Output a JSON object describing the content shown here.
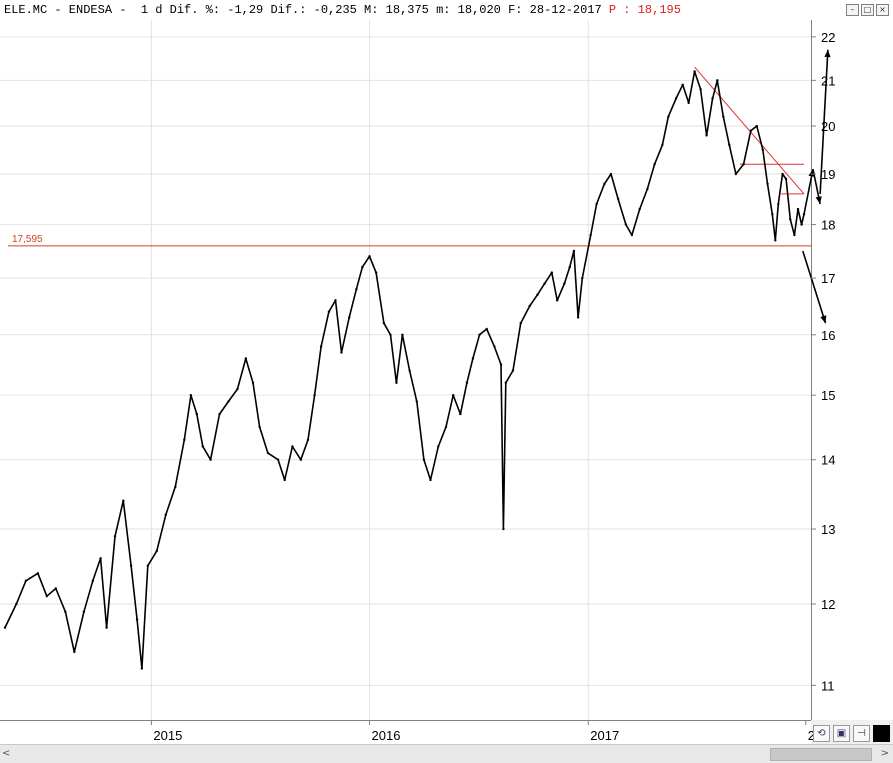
{
  "title_bar": {
    "main": "ELE.MC - ENDESA -  1 d Dif. %: -1,29 Dif.: -0,235 M: 18,375 m: 18,020 F: 28-12-2017 ",
    "last": "P : 18,195"
  },
  "window_controls": {
    "minimize": "–",
    "maximize": "□",
    "close": "×"
  },
  "scrollbar": {
    "left_arrow": "<",
    "right_arrow": ">"
  },
  "toolbar_icons": [
    "refresh-icon",
    "save-icon",
    "pin-icon",
    "color-box-icon"
  ],
  "colors": {
    "price": "#000000",
    "support": "#d04020",
    "trendline": "#e03030",
    "arrows": "#000000"
  },
  "chart_data": {
    "type": "line",
    "title": "ELE.MC - ENDESA",
    "xlabel": "",
    "ylabel": "",
    "y_scale": "log",
    "ylim": [
      10.6,
      22.4
    ],
    "xlim": [
      "2014-05-01",
      "2017-12-28"
    ],
    "yticks": [
      11,
      12,
      13,
      14,
      15,
      16,
      17,
      18,
      19,
      20,
      21,
      22
    ],
    "xticks": [
      "2015",
      "2016",
      "2017",
      "2"
    ],
    "grid": true,
    "series": [
      {
        "values": [
          [
            "2014-05-01",
            11.7
          ],
          [
            "2014-05-20",
            12.0
          ],
          [
            "2014-06-05",
            12.3
          ],
          [
            "2014-06-25",
            12.4
          ],
          [
            "2014-07-10",
            12.1
          ],
          [
            "2014-07-25",
            12.2
          ],
          [
            "2014-08-10",
            11.9
          ],
          [
            "2014-08-25",
            11.4
          ],
          [
            "2014-09-10",
            11.9
          ],
          [
            "2014-09-25",
            12.3
          ],
          [
            "2014-10-08",
            12.6
          ],
          [
            "2014-10-18",
            11.7
          ],
          [
            "2014-11-01",
            12.9
          ],
          [
            "2014-11-15",
            13.4
          ],
          [
            "2014-11-28",
            12.5
          ],
          [
            "2014-12-08",
            11.8
          ],
          [
            "2014-12-16",
            11.2
          ],
          [
            "2014-12-26",
            12.5
          ],
          [
            "2015-01-10",
            12.7
          ],
          [
            "2015-01-25",
            13.2
          ],
          [
            "2015-02-10",
            13.6
          ],
          [
            "2015-02-25",
            14.3
          ],
          [
            "2015-03-08",
            15.0
          ],
          [
            "2015-03-18",
            14.7
          ],
          [
            "2015-03-28",
            14.2
          ],
          [
            "2015-04-10",
            14.0
          ],
          [
            "2015-04-25",
            14.7
          ],
          [
            "2015-05-10",
            14.9
          ],
          [
            "2015-05-25",
            15.1
          ],
          [
            "2015-06-08",
            15.6
          ],
          [
            "2015-06-20",
            15.2
          ],
          [
            "2015-07-01",
            14.5
          ],
          [
            "2015-07-15",
            14.1
          ],
          [
            "2015-08-01",
            14.0
          ],
          [
            "2015-08-12",
            13.7
          ],
          [
            "2015-08-25",
            14.2
          ],
          [
            "2015-09-08",
            14.0
          ],
          [
            "2015-09-20",
            14.3
          ],
          [
            "2015-10-01",
            15.0
          ],
          [
            "2015-10-12",
            15.8
          ],
          [
            "2015-10-25",
            16.4
          ],
          [
            "2015-11-05",
            16.6
          ],
          [
            "2015-11-15",
            15.7
          ],
          [
            "2015-11-28",
            16.3
          ],
          [
            "2015-12-10",
            16.8
          ],
          [
            "2015-12-20",
            17.2
          ],
          [
            "2016-01-01",
            17.4
          ],
          [
            "2016-01-12",
            17.1
          ],
          [
            "2016-01-25",
            16.2
          ],
          [
            "2016-02-05",
            16.0
          ],
          [
            "2016-02-15",
            15.2
          ],
          [
            "2016-02-25",
            16.0
          ],
          [
            "2016-03-08",
            15.4
          ],
          [
            "2016-03-20",
            14.9
          ],
          [
            "2016-04-01",
            14.0
          ],
          [
            "2016-04-12",
            13.7
          ],
          [
            "2016-04-25",
            14.2
          ],
          [
            "2016-05-08",
            14.5
          ],
          [
            "2016-05-20",
            15.0
          ],
          [
            "2016-06-01",
            14.7
          ],
          [
            "2016-06-12",
            15.2
          ],
          [
            "2016-06-22",
            15.6
          ],
          [
            "2016-07-03",
            16.0
          ],
          [
            "2016-07-15",
            16.1
          ],
          [
            "2016-07-28",
            15.8
          ],
          [
            "2016-08-08",
            15.5
          ],
          [
            "2016-08-12",
            13.0
          ],
          [
            "2016-08-16",
            15.2
          ],
          [
            "2016-08-28",
            15.4
          ],
          [
            "2016-09-10",
            16.2
          ],
          [
            "2016-09-25",
            16.5
          ],
          [
            "2016-10-08",
            16.7
          ],
          [
            "2016-10-20",
            16.9
          ],
          [
            "2016-11-01",
            17.1
          ],
          [
            "2016-11-10",
            16.6
          ],
          [
            "2016-11-22",
            16.9
          ],
          [
            "2016-12-01",
            17.2
          ],
          [
            "2016-12-08",
            17.5
          ],
          [
            "2016-12-15",
            16.3
          ],
          [
            "2016-12-22",
            17.0
          ],
          [
            "2017-01-05",
            17.8
          ],
          [
            "2017-01-15",
            18.4
          ],
          [
            "2017-01-28",
            18.8
          ],
          [
            "2017-02-08",
            19.0
          ],
          [
            "2017-02-20",
            18.5
          ],
          [
            "2017-03-05",
            18.0
          ],
          [
            "2017-03-15",
            17.8
          ],
          [
            "2017-03-28",
            18.3
          ],
          [
            "2017-04-10",
            18.7
          ],
          [
            "2017-04-22",
            19.2
          ],
          [
            "2017-05-05",
            19.6
          ],
          [
            "2017-05-15",
            20.2
          ],
          [
            "2017-05-28",
            20.6
          ],
          [
            "2017-06-08",
            20.9
          ],
          [
            "2017-06-18",
            20.5
          ],
          [
            "2017-06-28",
            21.2
          ],
          [
            "2017-07-08",
            20.8
          ],
          [
            "2017-07-18",
            19.8
          ],
          [
            "2017-07-28",
            20.6
          ],
          [
            "2017-08-05",
            21.0
          ],
          [
            "2017-08-15",
            20.2
          ],
          [
            "2017-08-25",
            19.6
          ],
          [
            "2017-09-05",
            19.0
          ],
          [
            "2017-09-18",
            19.2
          ],
          [
            "2017-09-30",
            19.9
          ],
          [
            "2017-10-10",
            20.0
          ],
          [
            "2017-10-20",
            19.5
          ],
          [
            "2017-10-28",
            18.8
          ],
          [
            "2017-11-05",
            18.2
          ],
          [
            "2017-11-10",
            17.7
          ],
          [
            "2017-11-15",
            18.4
          ],
          [
            "2017-11-22",
            19.0
          ],
          [
            "2017-11-28",
            18.9
          ],
          [
            "2017-12-05",
            18.1
          ],
          [
            "2017-12-12",
            17.8
          ],
          [
            "2017-12-18",
            18.3
          ],
          [
            "2017-12-24",
            18.0
          ],
          [
            "2017-12-28",
            18.2
          ]
        ]
      }
    ],
    "annotations": [
      {
        "type": "hline",
        "y": 17.595,
        "label": "17,595",
        "color": "#d04020"
      },
      {
        "type": "line",
        "from": [
          "2017-06-28",
          21.3
        ],
        "to": [
          "2017-12-28",
          18.6
        ],
        "color": "#e03030"
      },
      {
        "type": "segment",
        "y": 19.2,
        "from": "2017-09-12",
        "to": "2017-12-28",
        "color": "#e03030"
      },
      {
        "type": "segment",
        "y": 18.6,
        "from": "2017-11-20",
        "to": "2017-12-28",
        "color": "#e03030"
      }
    ],
    "arrows": [
      {
        "from": [
          "2017-12-28",
          18.2
        ],
        "to": [
          "2018-01-12",
          19.1
        ]
      },
      {
        "from": [
          "2018-01-12",
          19.1
        ],
        "to": [
          "2018-01-24",
          18.4
        ]
      },
      {
        "from": [
          "2018-01-24",
          18.6
        ],
        "to": [
          "2018-02-06",
          21.7
        ]
      },
      {
        "from": [
          "2017-12-26",
          17.5
        ],
        "to": [
          "2018-02-02",
          16.2
        ]
      }
    ]
  }
}
